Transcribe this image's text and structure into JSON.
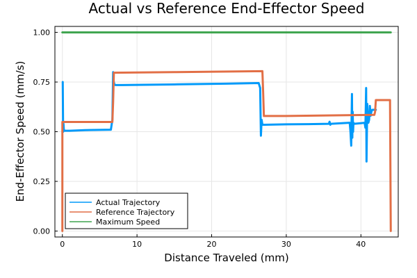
{
  "chart_data": {
    "type": "line",
    "title": "Actual vs Reference End-Effector Speed",
    "xlabel": "Distance Traveled (mm)",
    "ylabel": "End-Effector Speed (mm/s)",
    "xlim": [
      -1,
      45
    ],
    "ylim": [
      -0.03,
      1.03
    ],
    "xticks": [
      0,
      10,
      20,
      30,
      40
    ],
    "xtick_labels": [
      "0",
      "10",
      "20",
      "30",
      "40"
    ],
    "yticks": [
      0,
      0.25,
      0.5,
      0.75,
      1.0
    ],
    "ytick_labels": [
      "0.00",
      "0.25",
      "0.50",
      "0.75",
      "1.00"
    ],
    "grid": true,
    "legend_position": "bottom-left",
    "series": [
      {
        "name": "Actual Trajectory",
        "color": "#009AFA",
        "x": [
          0.05,
          0.1,
          0.15,
          0.2,
          0.3,
          0.5,
          1.0,
          3.0,
          6.5,
          6.7,
          6.8,
          6.85,
          6.95,
          7.1,
          8.0,
          15.0,
          22.0,
          26.3,
          26.5,
          26.6,
          26.7,
          26.8,
          27.0,
          30.0,
          33.0,
          35.7,
          35.8,
          35.9,
          36.0,
          38.5,
          38.6,
          38.7,
          38.75,
          38.8,
          38.85,
          38.9,
          38.95,
          39.0,
          39.1,
          40.0,
          40.5,
          40.6,
          40.7,
          40.75,
          40.8,
          40.85,
          40.9,
          41.0,
          41.1,
          41.2,
          41.3,
          41.4,
          41.5,
          41.7,
          42.0
        ],
        "y": [
          0.75,
          0.5,
          0.54,
          0.51,
          0.505,
          0.505,
          0.505,
          0.508,
          0.51,
          0.56,
          0.8,
          0.76,
          0.74,
          0.735,
          0.735,
          0.738,
          0.742,
          0.745,
          0.72,
          0.48,
          0.56,
          0.535,
          0.535,
          0.537,
          0.538,
          0.54,
          0.55,
          0.535,
          0.54,
          0.545,
          0.5,
          0.43,
          0.56,
          0.69,
          0.47,
          0.6,
          0.5,
          0.545,
          0.54,
          0.543,
          0.545,
          0.52,
          0.72,
          0.35,
          0.5,
          0.64,
          0.58,
          0.545,
          0.56,
          0.63,
          0.58,
          0.6,
          0.61,
          0.61,
          0.61
        ]
      },
      {
        "name": "Reference Trajectory",
        "color": "#E26F46",
        "x": [
          0.0,
          0.0,
          0.05,
          0.1,
          1.0,
          6.7,
          6.8,
          6.9,
          15.0,
          26.8,
          26.9,
          27.0,
          30.0,
          41.8,
          41.9,
          42.0,
          42.1,
          43.9,
          44.0
        ],
        "y": [
          0.0,
          0.549,
          0.549,
          0.549,
          0.549,
          0.549,
          0.65,
          0.797,
          0.8,
          0.805,
          0.7,
          0.579,
          0.579,
          0.585,
          0.6,
          0.659,
          0.659,
          0.659,
          0.0
        ]
      },
      {
        "name": "Maximum Speed",
        "color": "#3EA44E",
        "x": [
          0.0,
          44.0
        ],
        "y": [
          1.0,
          1.0
        ]
      }
    ]
  }
}
